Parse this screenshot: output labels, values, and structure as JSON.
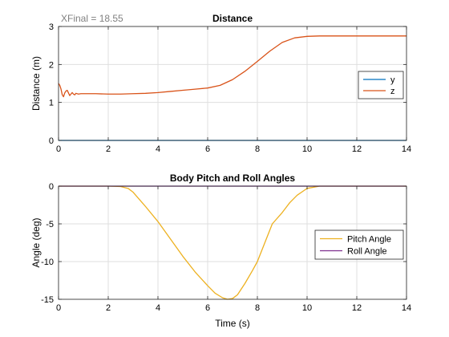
{
  "annotation": "XFinal = 18.55",
  "chart_data": [
    {
      "type": "line",
      "title": "Distance",
      "xlabel": "",
      "ylabel": "Distance (m)",
      "xlim": [
        0,
        14
      ],
      "ylim": [
        0,
        3
      ],
      "xticks": [
        0,
        2,
        4,
        6,
        8,
        10,
        12,
        14
      ],
      "yticks": [
        0,
        1,
        2,
        3
      ],
      "grid": true,
      "legend_position": "right",
      "series": [
        {
          "name": "y",
          "color": "#0072BD",
          "x": [
            0,
            14
          ],
          "y": [
            0,
            0
          ]
        },
        {
          "name": "z",
          "color": "#D95319",
          "x": [
            0,
            0.05,
            0.1,
            0.15,
            0.2,
            0.25,
            0.3,
            0.35,
            0.4,
            0.45,
            0.5,
            0.55,
            0.6,
            0.65,
            0.7,
            0.8,
            0.9,
            1.0,
            1.5,
            2,
            2.5,
            3,
            3.5,
            4,
            4.5,
            5,
            5.5,
            6,
            6.5,
            7,
            7.5,
            8,
            8.5,
            9,
            9.5,
            10,
            10.5,
            11,
            12,
            13,
            14
          ],
          "y": [
            1.5,
            1.45,
            1.35,
            1.2,
            1.15,
            1.25,
            1.3,
            1.32,
            1.25,
            1.18,
            1.22,
            1.26,
            1.22,
            1.2,
            1.24,
            1.22,
            1.23,
            1.23,
            1.23,
            1.22,
            1.22,
            1.23,
            1.24,
            1.26,
            1.29,
            1.32,
            1.35,
            1.38,
            1.45,
            1.6,
            1.82,
            2.08,
            2.35,
            2.58,
            2.7,
            2.74,
            2.75,
            2.75,
            2.75,
            2.75,
            2.75
          ]
        }
      ]
    },
    {
      "type": "line",
      "title": "Body Pitch and Roll Angles",
      "xlabel": "Time (s)",
      "ylabel": "Angle (deg)",
      "xlim": [
        0,
        14
      ],
      "ylim": [
        -15,
        0
      ],
      "xticks": [
        0,
        2,
        4,
        6,
        8,
        10,
        12,
        14
      ],
      "yticks": [
        -15,
        -10,
        -5,
        0
      ],
      "grid": true,
      "legend_position": "right",
      "series": [
        {
          "name": "Pitch Angle",
          "color": "#EDB120",
          "x": [
            0,
            2,
            2.5,
            2.8,
            3,
            3.5,
            4,
            4.5,
            5,
            5.5,
            6,
            6.3,
            6.6,
            6.8,
            7.0,
            7.2,
            7.5,
            7.8,
            8,
            8.3,
            8.6,
            9,
            9.3,
            9.6,
            10,
            10.5,
            11,
            14
          ],
          "y": [
            0,
            0,
            -0.05,
            -0.3,
            -0.8,
            -2.7,
            -4.7,
            -7.0,
            -9.3,
            -11.4,
            -13.2,
            -14.2,
            -14.8,
            -15.0,
            -14.9,
            -14.4,
            -12.9,
            -11.2,
            -10.0,
            -7.5,
            -5.0,
            -3.5,
            -2.2,
            -1.2,
            -0.3,
            0,
            0,
            0
          ]
        },
        {
          "name": "Roll Angle",
          "color": "#7E2F8E",
          "x": [
            0,
            14
          ],
          "y": [
            0,
            0
          ]
        }
      ]
    }
  ]
}
